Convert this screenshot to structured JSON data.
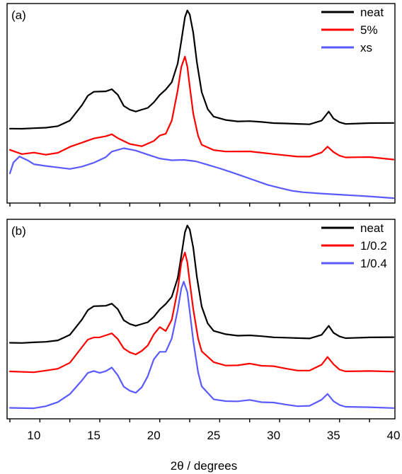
{
  "chart_data": [
    {
      "type": "line",
      "panel_label": "(a)",
      "x_range": [
        8,
        40
      ],
      "x_ticks": [
        10,
        15,
        20,
        25,
        30,
        35,
        40
      ],
      "x_tick_labels_shown": false,
      "y_ticks_shown": false,
      "legend_position": "top-right",
      "series": [
        {
          "name": "neat",
          "color": "#000000",
          "points": [
            [
              8,
              0.37
            ],
            [
              9,
              0.37
            ],
            [
              10,
              0.375
            ],
            [
              11,
              0.38
            ],
            [
              12,
              0.39
            ],
            [
              13,
              0.42
            ],
            [
              14,
              0.5
            ],
            [
              14.5,
              0.55
            ],
            [
              15,
              0.57
            ],
            [
              15.5,
              0.57
            ],
            [
              16,
              0.57
            ],
            [
              16.5,
              0.58
            ],
            [
              17,
              0.55
            ],
            [
              17.5,
              0.49
            ],
            [
              18,
              0.47
            ],
            [
              18.5,
              0.46
            ],
            [
              19,
              0.47
            ],
            [
              19.5,
              0.48
            ],
            [
              20,
              0.51
            ],
            [
              20.5,
              0.55
            ],
            [
              21,
              0.58
            ],
            [
              21.5,
              0.62
            ],
            [
              22,
              0.72
            ],
            [
              22.3,
              0.84
            ],
            [
              22.6,
              0.96
            ],
            [
              22.8,
              1.0
            ],
            [
              23,
              0.98
            ],
            [
              23.3,
              0.88
            ],
            [
              23.6,
              0.72
            ],
            [
              24,
              0.57
            ],
            [
              24.5,
              0.48
            ],
            [
              25,
              0.44
            ],
            [
              26,
              0.42
            ],
            [
              27,
              0.41
            ],
            [
              28,
              0.41
            ],
            [
              29,
              0.405
            ],
            [
              30,
              0.4
            ],
            [
              31,
              0.4
            ],
            [
              32,
              0.4
            ],
            [
              33,
              0.4
            ],
            [
              34,
              0.42
            ],
            [
              34.6,
              0.46
            ],
            [
              35,
              0.43
            ],
            [
              35.5,
              0.41
            ],
            [
              36,
              0.4
            ],
            [
              38,
              0.4
            ],
            [
              40,
              0.4
            ]
          ]
        },
        {
          "name": "5%",
          "color": "#ff0000",
          "points": [
            [
              8,
              0.26
            ],
            [
              8.5,
              0.25
            ],
            [
              9,
              0.24
            ],
            [
              10,
              0.25
            ],
            [
              11,
              0.24
            ],
            [
              12,
              0.25
            ],
            [
              13,
              0.28
            ],
            [
              14,
              0.3
            ],
            [
              15,
              0.32
            ],
            [
              16,
              0.33
            ],
            [
              16.5,
              0.34
            ],
            [
              17,
              0.32
            ],
            [
              18,
              0.29
            ],
            [
              19,
              0.28
            ],
            [
              20,
              0.31
            ],
            [
              20.5,
              0.34
            ],
            [
              21,
              0.35
            ],
            [
              21.5,
              0.42
            ],
            [
              22,
              0.58
            ],
            [
              22.3,
              0.7
            ],
            [
              22.6,
              0.75
            ],
            [
              22.8,
              0.7
            ],
            [
              23,
              0.6
            ],
            [
              23.3,
              0.45
            ],
            [
              23.7,
              0.34
            ],
            [
              24,
              0.29
            ],
            [
              25,
              0.26
            ],
            [
              26,
              0.25
            ],
            [
              28,
              0.25
            ],
            [
              30,
              0.24
            ],
            [
              32,
              0.23
            ],
            [
              33,
              0.23
            ],
            [
              34,
              0.25
            ],
            [
              34.5,
              0.28
            ],
            [
              35,
              0.25
            ],
            [
              35.5,
              0.23
            ],
            [
              36,
              0.22
            ],
            [
              38,
              0.22
            ],
            [
              40,
              0.21
            ]
          ]
        },
        {
          "name": "xs",
          "color": "#5a5aff",
          "points": [
            [
              8,
              0.14
            ],
            [
              8.3,
              0.2
            ],
            [
              8.8,
              0.23
            ],
            [
              9.5,
              0.21
            ],
            [
              10,
              0.19
            ],
            [
              11,
              0.18
            ],
            [
              12,
              0.17
            ],
            [
              13,
              0.16
            ],
            [
              14,
              0.17
            ],
            [
              15,
              0.19
            ],
            [
              16,
              0.22
            ],
            [
              16.5,
              0.25
            ],
            [
              17.5,
              0.27
            ],
            [
              18.5,
              0.26
            ],
            [
              19.5,
              0.24
            ],
            [
              20.5,
              0.22
            ],
            [
              21.5,
              0.21
            ],
            [
              22.5,
              0.21
            ],
            [
              23.5,
              0.2
            ],
            [
              24.5,
              0.18
            ],
            [
              25.5,
              0.16
            ],
            [
              26.5,
              0.14
            ],
            [
              27.5,
              0.12
            ],
            [
              28.5,
              0.1
            ],
            [
              29.5,
              0.08
            ],
            [
              30.5,
              0.065
            ],
            [
              31.5,
              0.05
            ],
            [
              32.5,
              0.04
            ],
            [
              34,
              0.03
            ],
            [
              36,
              0.02
            ],
            [
              38,
              0.015
            ],
            [
              40,
              0.01
            ]
          ]
        }
      ]
    },
    {
      "type": "line",
      "panel_label": "(b)",
      "x_range": [
        8,
        40
      ],
      "x_ticks": [
        10,
        15,
        20,
        25,
        30,
        35,
        40
      ],
      "x_tick_labels": [
        "10",
        "15",
        "20",
        "25",
        "30",
        "35",
        "40"
      ],
      "x_label": "2θ / degrees",
      "y_ticks_shown": false,
      "legend_position": "top-right",
      "series": [
        {
          "name": "neat",
          "color": "#000000",
          "points": [
            [
              8,
              0.37
            ],
            [
              9,
              0.37
            ],
            [
              10,
              0.375
            ],
            [
              11,
              0.38
            ],
            [
              12,
              0.39
            ],
            [
              13,
              0.42
            ],
            [
              14,
              0.5
            ],
            [
              14.5,
              0.55
            ],
            [
              15,
              0.57
            ],
            [
              15.5,
              0.57
            ],
            [
              16,
              0.57
            ],
            [
              16.5,
              0.58
            ],
            [
              17,
              0.55
            ],
            [
              17.5,
              0.49
            ],
            [
              18,
              0.47
            ],
            [
              18.5,
              0.46
            ],
            [
              19,
              0.47
            ],
            [
              19.5,
              0.48
            ],
            [
              20,
              0.51
            ],
            [
              20.5,
              0.55
            ],
            [
              21,
              0.58
            ],
            [
              21.5,
              0.62
            ],
            [
              22,
              0.72
            ],
            [
              22.3,
              0.84
            ],
            [
              22.6,
              0.96
            ],
            [
              22.8,
              1.0
            ],
            [
              23,
              0.98
            ],
            [
              23.3,
              0.88
            ],
            [
              23.6,
              0.72
            ],
            [
              24,
              0.57
            ],
            [
              24.5,
              0.48
            ],
            [
              25,
              0.44
            ],
            [
              26,
              0.42
            ],
            [
              27,
              0.41
            ],
            [
              28,
              0.41
            ],
            [
              29,
              0.405
            ],
            [
              30,
              0.4
            ],
            [
              31,
              0.4
            ],
            [
              32,
              0.4
            ],
            [
              33,
              0.4
            ],
            [
              34,
              0.42
            ],
            [
              34.6,
              0.46
            ],
            [
              35,
              0.43
            ],
            [
              35.5,
              0.41
            ],
            [
              36,
              0.4
            ],
            [
              38,
              0.4
            ],
            [
              40,
              0.4
            ]
          ]
        },
        {
          "name": "1/0.2",
          "color": "#ff0000",
          "points": [
            [
              8,
              0.22
            ],
            [
              10,
              0.22
            ],
            [
              11,
              0.23
            ],
            [
              12,
              0.24
            ],
            [
              13,
              0.27
            ],
            [
              14,
              0.35
            ],
            [
              14.5,
              0.39
            ],
            [
              15,
              0.4
            ],
            [
              15.5,
              0.4
            ],
            [
              16,
              0.41
            ],
            [
              16.5,
              0.42
            ],
            [
              17,
              0.39
            ],
            [
              17.5,
              0.34
            ],
            [
              18,
              0.32
            ],
            [
              18.5,
              0.31
            ],
            [
              19,
              0.33
            ],
            [
              19.5,
              0.36
            ],
            [
              20,
              0.42
            ],
            [
              20.5,
              0.46
            ],
            [
              21,
              0.44
            ],
            [
              21.5,
              0.5
            ],
            [
              22,
              0.66
            ],
            [
              22.3,
              0.8
            ],
            [
              22.6,
              0.85
            ],
            [
              22.8,
              0.8
            ],
            [
              23,
              0.7
            ],
            [
              23.3,
              0.55
            ],
            [
              23.7,
              0.4
            ],
            [
              24,
              0.33
            ],
            [
              25,
              0.27
            ],
            [
              26,
              0.25
            ],
            [
              27,
              0.25
            ],
            [
              28,
              0.26
            ],
            [
              29,
              0.25
            ],
            [
              30,
              0.25
            ],
            [
              31,
              0.24
            ],
            [
              32,
              0.23
            ],
            [
              33,
              0.23
            ],
            [
              34,
              0.26
            ],
            [
              34.5,
              0.3
            ],
            [
              35,
              0.26
            ],
            [
              35.5,
              0.23
            ],
            [
              36,
              0.22
            ],
            [
              38,
              0.22
            ],
            [
              40,
              0.22
            ]
          ]
        },
        {
          "name": "1/0.4",
          "color": "#5a5aff",
          "points": [
            [
              8,
              0.03
            ],
            [
              10,
              0.03
            ],
            [
              11,
              0.04
            ],
            [
              12,
              0.06
            ],
            [
              13,
              0.1
            ],
            [
              14,
              0.17
            ],
            [
              14.5,
              0.21
            ],
            [
              15,
              0.22
            ],
            [
              15.5,
              0.21
            ],
            [
              16,
              0.22
            ],
            [
              16.5,
              0.24
            ],
            [
              17,
              0.2
            ],
            [
              17.5,
              0.14
            ],
            [
              18,
              0.12
            ],
            [
              18.5,
              0.11
            ],
            [
              19,
              0.14
            ],
            [
              19.5,
              0.2
            ],
            [
              20,
              0.29
            ],
            [
              20.5,
              0.33
            ],
            [
              21,
              0.33
            ],
            [
              21.5,
              0.4
            ],
            [
              22,
              0.55
            ],
            [
              22.3,
              0.66
            ],
            [
              22.5,
              0.7
            ],
            [
              22.8,
              0.64
            ],
            [
              23,
              0.54
            ],
            [
              23.3,
              0.38
            ],
            [
              23.7,
              0.22
            ],
            [
              24,
              0.14
            ],
            [
              25,
              0.07
            ],
            [
              26,
              0.06
            ],
            [
              27,
              0.06
            ],
            [
              28,
              0.07
            ],
            [
              29,
              0.06
            ],
            [
              30,
              0.06
            ],
            [
              31,
              0.05
            ],
            [
              32,
              0.04
            ],
            [
              33,
              0.04
            ],
            [
              34,
              0.07
            ],
            [
              34.5,
              0.1
            ],
            [
              35,
              0.06
            ],
            [
              35.5,
              0.04
            ],
            [
              36,
              0.03
            ],
            [
              38,
              0.03
            ],
            [
              40,
              0.03
            ]
          ]
        }
      ]
    }
  ]
}
